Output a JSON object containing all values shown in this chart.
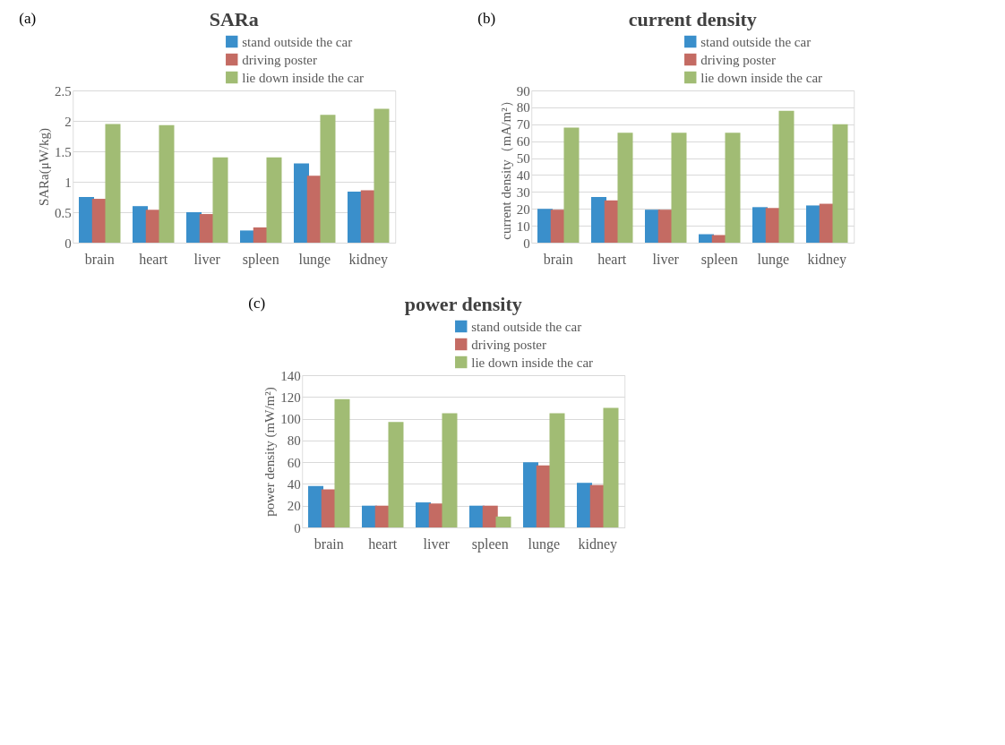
{
  "chart_data": [
    {
      "type": "bar",
      "title": "SARa",
      "ylabel": "SARa(μW/kg)",
      "annotations": [
        "(a)"
      ],
      "categories": [
        "brain",
        "heart",
        "liver",
        "spleen",
        "lunge",
        "kidney"
      ],
      "ylim": [
        0,
        2.5
      ],
      "yticks": [
        0,
        0.5,
        1,
        1.5,
        2,
        2.5
      ],
      "grid": "y",
      "legend": "top right",
      "series": [
        {
          "name": "stand outside the car",
          "color": "#3a8fcb",
          "values": [
            0.75,
            0.6,
            0.5,
            0.2,
            1.3,
            0.84
          ]
        },
        {
          "name": "driving poster",
          "color": "#c46b63",
          "values": [
            0.72,
            0.54,
            0.47,
            0.25,
            1.1,
            0.86
          ]
        },
        {
          "name": "lie down inside the car",
          "color": "#a1bc74",
          "values": [
            1.95,
            1.93,
            1.4,
            1.4,
            2.1,
            2.2
          ]
        }
      ]
    },
    {
      "type": "bar",
      "title": "current density",
      "ylabel": "current density（mA/m²）",
      "annotations": [
        "(b)"
      ],
      "categories": [
        "brain",
        "heart",
        "liver",
        "spleen",
        "lunge",
        "kidney"
      ],
      "ylim": [
        0,
        90
      ],
      "yticks": [
        0,
        10,
        20,
        30,
        40,
        50,
        60,
        70,
        80,
        90
      ],
      "grid": "y",
      "legend": "top right",
      "series": [
        {
          "name": "stand outside the car",
          "color": "#3a8fcb",
          "values": [
            20,
            27,
            19.5,
            5,
            21,
            22
          ]
        },
        {
          "name": "driving poster",
          "color": "#c46b63",
          "values": [
            19.5,
            25,
            19.5,
            4.5,
            20.5,
            23
          ]
        },
        {
          "name": "lie down inside the car",
          "color": "#a1bc74",
          "values": [
            68,
            65,
            65,
            65,
            78,
            70
          ]
        }
      ]
    },
    {
      "type": "bar",
      "title": "power density",
      "ylabel": "power density (mW/m²)",
      "annotations": [
        "(c)"
      ],
      "categories": [
        "brain",
        "heart",
        "liver",
        "spleen",
        "lunge",
        "kidney"
      ],
      "ylim": [
        0,
        140
      ],
      "yticks": [
        0,
        20,
        40,
        60,
        80,
        100,
        120,
        140
      ],
      "grid": "y",
      "legend": "top right",
      "series": [
        {
          "name": "stand outside the car",
          "color": "#3a8fcb",
          "values": [
            38,
            20,
            23,
            20,
            60,
            41
          ]
        },
        {
          "name": "driving poster",
          "color": "#c46b63",
          "values": [
            35,
            20,
            22,
            20,
            57,
            39
          ]
        },
        {
          "name": "lie down inside the car",
          "color": "#a1bc74",
          "values": [
            118,
            97,
            105,
            10,
            105,
            110
          ]
        }
      ]
    }
  ]
}
